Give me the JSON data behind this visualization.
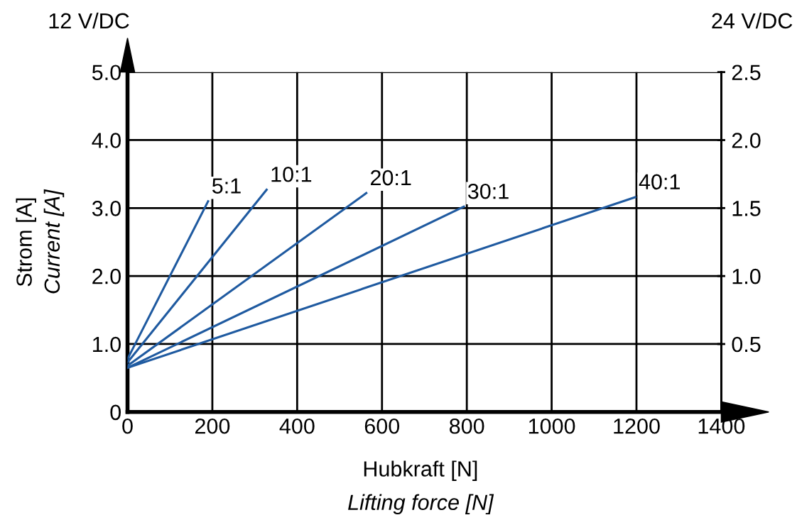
{
  "chart_data": {
    "type": "line",
    "xlabel": "Hubkraft [N]\nLifting force [N]",
    "ylabel": "Strom [A]\nCurrent [A]",
    "annotations": [
      "12 V/DC",
      "24 V/DC"
    ],
    "series": [
      {
        "name": "5:1",
        "color": "#1f5aa0",
        "x": [
          0,
          190
        ],
        "values": [
          0.78,
          3.1
        ]
      },
      {
        "name": "10:1",
        "color": "#1f5aa0",
        "x": [
          0,
          328
        ],
        "values": [
          0.73,
          3.27
        ]
      },
      {
        "name": "20:1",
        "color": "#1f5aa0",
        "x": [
          0,
          563
        ],
        "values": [
          0.68,
          3.22
        ]
      },
      {
        "name": "30:1",
        "color": "#1f5aa0",
        "x": [
          0,
          793
        ],
        "values": [
          0.65,
          3.02
        ]
      },
      {
        "name": "40:1",
        "color": "#1f5aa0",
        "x": [
          0,
          1197
        ],
        "values": [
          0.65,
          3.16
        ]
      }
    ],
    "xlim": [
      0,
      1400
    ],
    "xticks": [
      0,
      200,
      400,
      600,
      800,
      1000,
      1200,
      1400
    ],
    "ylim": [
      0,
      5
    ],
    "yticks": [
      0,
      {
        "value": 1,
        "label": "1.0"
      },
      {
        "value": 2,
        "label": "2.0"
      },
      {
        "value": 3,
        "label": "3.0"
      },
      {
        "value": 4,
        "label": "4.0"
      },
      {
        "value": 5,
        "label": "5.0"
      }
    ],
    "y2lim": [
      0,
      2.5
    ],
    "y2ticks": [
      0.5,
      {
        "value": 1,
        "label": "1.0"
      },
      1.5,
      {
        "value": 2,
        "label": "2.0"
      },
      2.5
    ],
    "grid": true,
    "marker": "none",
    "line_style": "solid",
    "legend": false
  }
}
